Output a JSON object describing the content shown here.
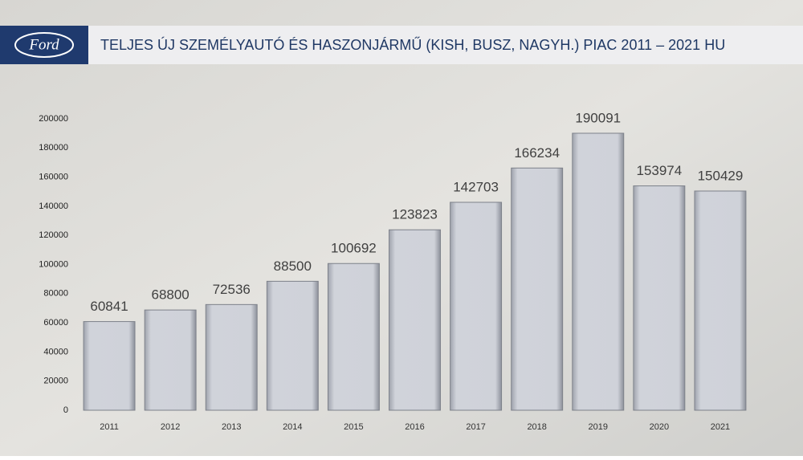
{
  "header": {
    "logo": "Ford"
  },
  "chart_data": {
    "type": "bar",
    "title": "TELJES ÚJ SZEMÉLYAUTÓ ÉS HASZONJÁRMŰ (KISH, BUSZ, NAGYH.) PIAC 2011 – 2021 HU",
    "categories": [
      "2011",
      "2012",
      "2013",
      "2014",
      "2015",
      "2016",
      "2017",
      "2018",
      "2019",
      "2020",
      "2021"
    ],
    "values": [
      60841,
      68800,
      72536,
      88500,
      100692,
      123823,
      142703,
      166234,
      190091,
      153974,
      150429
    ],
    "color": "#c9ccd4",
    "ylim": [
      0,
      200000
    ],
    "yticks": [
      0,
      20000,
      40000,
      60000,
      80000,
      100000,
      120000,
      140000,
      160000,
      180000,
      200000
    ],
    "grid": false
  }
}
